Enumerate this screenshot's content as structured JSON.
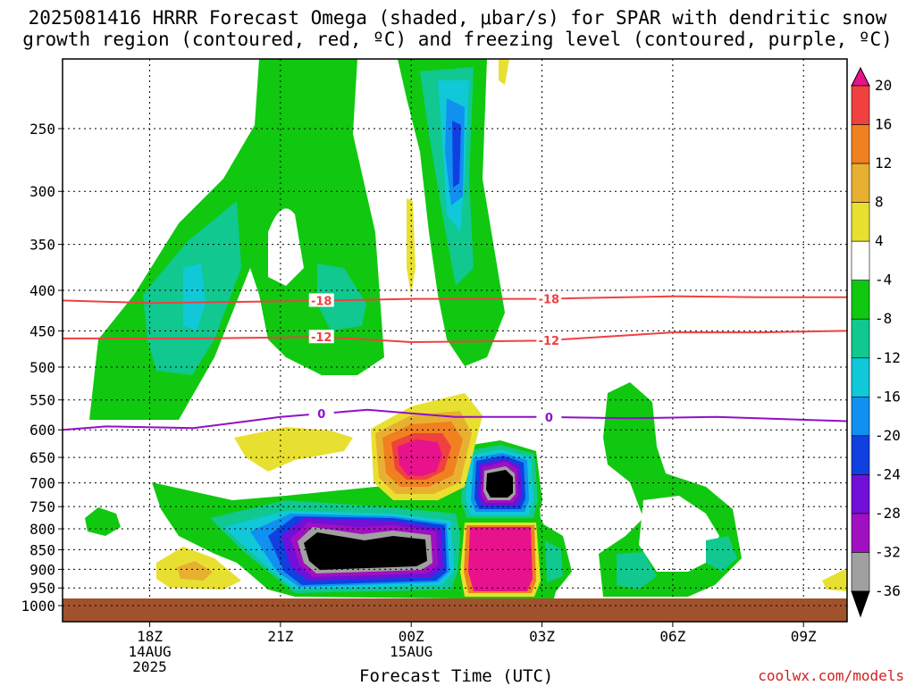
{
  "title_line1": "2025081416 HRRR Forecast Omega (shaded, μbar/s) for SPAR with dendritic snow",
  "title_line2": "growth region (contoured, red, ºC) and freezing level (contoured, purple, ºC)",
  "credit": "coolwx.com/models",
  "chart_data": {
    "type": "heatmap",
    "title": "2025081416 HRRR Forecast Omega (shaded, μbar/s) for SPAR with dendritic snow growth region (contoured, red, ºC) and freezing level (contoured, purple, ºC)",
    "xlabel": "Forecast Time (UTC)",
    "ylabel": "",
    "y_scale": "log-pressure (inverted)",
    "y_ticks": [
      "250",
      "300",
      "350",
      "400",
      "450",
      "500",
      "550",
      "600",
      "650",
      "700",
      "750",
      "800",
      "850",
      "900",
      "950",
      "1000"
    ],
    "y_tick_values": [
      250,
      300,
      350,
      400,
      450,
      500,
      550,
      600,
      650,
      700,
      750,
      800,
      850,
      900,
      950,
      1000
    ],
    "x_ticks": [
      {
        "label": "18Z",
        "sub1": "14AUG",
        "sub2": "2025",
        "hour": 2
      },
      {
        "label": "21Z",
        "sub1": "",
        "sub2": "",
        "hour": 5
      },
      {
        "label": "00Z",
        "sub1": "15AUG",
        "sub2": "",
        "hour": 8
      },
      {
        "label": "03Z",
        "sub1": "",
        "sub2": "",
        "hour": 11
      },
      {
        "label": "06Z",
        "sub1": "",
        "sub2": "",
        "hour": 14
      },
      {
        "label": "09Z",
        "sub1": "",
        "sub2": "",
        "hour": 17
      }
    ],
    "xlim": [
      0,
      18
    ],
    "colorbar": {
      "labels": [
        "20",
        "16",
        "12",
        "8",
        "4",
        "-4",
        "-8",
        "-12",
        "-16",
        "-20",
        "-24",
        "-28",
        "-32",
        "-36"
      ],
      "colors": [
        "#e8128c",
        "#f04040",
        "#f08020",
        "#e8b030",
        "#e8e030",
        "#ffffff",
        "#10c810",
        "#10c890",
        "#10c8d8",
        "#1090f0",
        "#1040e0",
        "#7010d8",
        "#a010c0",
        "#a0a0a0",
        "#000000"
      ]
    },
    "contours": [
      {
        "name": "-18",
        "color": "#f04040",
        "label": "-18",
        "points": [
          [
            0,
            412
          ],
          [
            2,
            415
          ],
          [
            5,
            413
          ],
          [
            8,
            410
          ],
          [
            11,
            410
          ],
          [
            14,
            407
          ],
          [
            16,
            408
          ],
          [
            18,
            408
          ]
        ]
      },
      {
        "name": "-12",
        "color": "#f04040",
        "label": "-12",
        "points": [
          [
            0,
            460
          ],
          [
            3,
            460
          ],
          [
            6,
            458
          ],
          [
            8,
            465
          ],
          [
            11,
            463
          ],
          [
            14,
            452
          ],
          [
            16,
            452
          ],
          [
            18,
            450
          ]
        ]
      },
      {
        "name": "0",
        "color": "#9010c8",
        "label": "0",
        "points": [
          [
            0,
            600
          ],
          [
            1,
            594
          ],
          [
            3,
            597
          ],
          [
            5,
            578
          ],
          [
            7,
            566
          ],
          [
            9,
            578
          ],
          [
            11,
            578
          ],
          [
            13,
            580
          ],
          [
            15,
            578
          ],
          [
            18,
            585
          ]
        ]
      }
    ],
    "ground_level_hpa": 975
  }
}
